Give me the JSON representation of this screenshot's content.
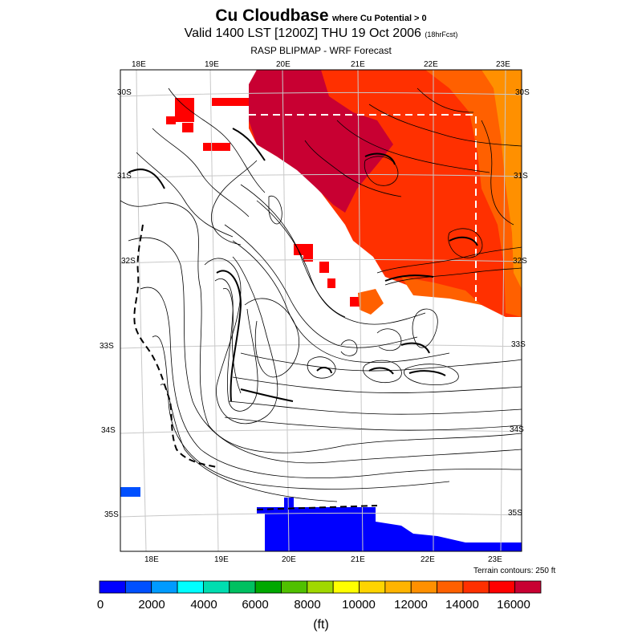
{
  "title": {
    "main": "Cu Cloudbase",
    "qualifier": "where Cu Potential > 0",
    "valid": "Valid 1400 LST [1200Z] THU 19 Oct 2006",
    "forecast": "(18hrFcst)",
    "product": "RASP BLIPMAP - WRF Forecast"
  },
  "axes": {
    "lon_top": [
      "18E",
      "19E",
      "20E",
      "21E",
      "22E",
      "23E"
    ],
    "lon_bottom": [
      "18E",
      "19E",
      "20E",
      "21E",
      "22E",
      "23E"
    ],
    "lat_left": [
      "30S",
      "31S",
      "32S",
      "33S",
      "34S",
      "35S"
    ],
    "lat_right": [
      "30S",
      "31S",
      "32S",
      "33S",
      "34S",
      "35S"
    ]
  },
  "terrain_note": "Terrain contours: 250 ft",
  "colorbar": {
    "colors": [
      "#0000ff",
      "#0050ff",
      "#009bff",
      "#00ffff",
      "#00ddb0",
      "#00c060",
      "#00a800",
      "#50c000",
      "#a0d800",
      "#ffff00",
      "#ffd400",
      "#ffb400",
      "#ff9000",
      "#ff6000",
      "#ff3000",
      "#ff0000",
      "#c80032"
    ],
    "tick_labels": [
      "0",
      "2000",
      "4000",
      "6000",
      "8000",
      "10000",
      "12000",
      "14000",
      "16000"
    ],
    "unit": "(ft)"
  },
  "chart_data": {
    "type": "heatmap",
    "title": "Cu Cloudbase where Cu Potential > 0",
    "subtitle": "Valid 1400 LST [1200Z] THU 19 Oct 2006 (18hrFcst) — RASP BLIPMAP - WRF Forecast",
    "variable": "Cu cloudbase height",
    "units": "ft",
    "color_range": [
      0,
      17000
    ],
    "color_interval": 1000,
    "lon_range_deg_E": [
      17.6,
      23.3
    ],
    "lat_range_deg_S": [
      29.7,
      35.4
    ],
    "regions": [
      {
        "name": "northeast interior",
        "cloudbase_ft": [
          14000,
          17000
        ]
      },
      {
        "name": "northwest interior near 19E-20E",
        "cloudbase_ft": [
          16000,
          17000
        ]
      },
      {
        "name": "central escarpment near 21E 32.5S",
        "cloudbase_ft": [
          14000,
          15000
        ]
      },
      {
        "name": "ocean south of coast",
        "cloudbase_ft": [
          0,
          1000
        ]
      },
      {
        "name": "southwest ocean near 17.7E 34.7S",
        "cloudbase_ft": [
          1000,
          2000
        ]
      }
    ],
    "terrain_contour_interval_ft": 250
  }
}
